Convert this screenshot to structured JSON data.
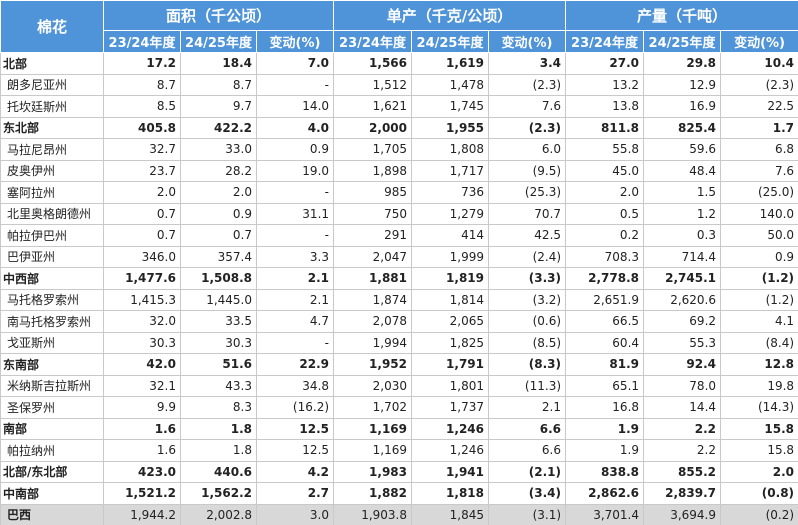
{
  "header": {
    "first": "棉花",
    "groups": [
      "面积（千公顷）",
      "单产（千克/公顷）",
      "产量（千吨）"
    ],
    "sub": [
      "23/24年度",
      "24/25年度",
      "变动(%)",
      "23/24年度",
      "24/25年度",
      "变动(%)",
      "23/24年度",
      "24/25年度",
      "变动(%)"
    ]
  },
  "table": {
    "bold_rows": [
      0,
      3,
      10,
      14,
      17,
      19,
      20
    ],
    "shaded_rows": [
      21
    ],
    "rows": [
      [
        "北部",
        "17.2",
        "18.4",
        "7.0",
        "1,566",
        "1,619",
        "3.4",
        "27.0",
        "29.8",
        "10.4"
      ],
      [
        "朗多尼亚州",
        "8.7",
        "8.7",
        "-",
        "1,512",
        "1,478",
        "(2.3)",
        "13.2",
        "12.9",
        "(2.3)"
      ],
      [
        "托坎廷斯州",
        "8.5",
        "9.7",
        "14.0",
        "1,621",
        "1,745",
        "7.6",
        "13.8",
        "16.9",
        "22.5"
      ],
      [
        "东北部",
        "405.8",
        "422.2",
        "4.0",
        "2,000",
        "1,955",
        "(2.3)",
        "811.8",
        "825.4",
        "1.7"
      ],
      [
        "马拉尼昂州",
        "32.7",
        "33.0",
        "0.9",
        "1,705",
        "1,808",
        "6.0",
        "55.8",
        "59.6",
        "6.8"
      ],
      [
        "皮奥伊州",
        "23.7",
        "28.2",
        "19.0",
        "1,898",
        "1,717",
        "(9.5)",
        "45.0",
        "48.4",
        "7.6"
      ],
      [
        "塞阿拉州",
        "2.0",
        "2.0",
        "-",
        "985",
        "736",
        "(25.3)",
        "2.0",
        "1.5",
        "(25.0)"
      ],
      [
        "北里奥格朗德州",
        "0.7",
        "0.9",
        "31.1",
        "750",
        "1,279",
        "70.7",
        "0.5",
        "1.2",
        "140.0"
      ],
      [
        "帕拉伊巴州",
        "0.7",
        "0.7",
        "-",
        "291",
        "414",
        "42.5",
        "0.2",
        "0.3",
        "50.0"
      ],
      [
        "巴伊亚州",
        "346.0",
        "357.4",
        "3.3",
        "2,047",
        "1,999",
        "(2.4)",
        "708.3",
        "714.4",
        "0.9"
      ],
      [
        "中西部",
        "1,477.6",
        "1,508.8",
        "2.1",
        "1,881",
        "1,819",
        "(3.3)",
        "2,778.8",
        "2,745.1",
        "(1.2)"
      ],
      [
        "马托格罗索州",
        "1,415.3",
        "1,445.0",
        "2.1",
        "1,874",
        "1,814",
        "(3.2)",
        "2,651.9",
        "2,620.6",
        "(1.2)"
      ],
      [
        "南马托格罗索州",
        "32.0",
        "33.5",
        "4.7",
        "2,078",
        "2,065",
        "(0.6)",
        "66.5",
        "69.2",
        "4.1"
      ],
      [
        "戈亚斯州",
        "30.3",
        "30.3",
        "-",
        "1,994",
        "1,825",
        "(8.5)",
        "60.4",
        "55.3",
        "(8.4)"
      ],
      [
        "东南部",
        "42.0",
        "51.6",
        "22.9",
        "1,952",
        "1,791",
        "(8.3)",
        "81.9",
        "92.4",
        "12.8"
      ],
      [
        "米纳斯吉拉斯州",
        "32.1",
        "43.3",
        "34.8",
        "2,030",
        "1,801",
        "(11.3)",
        "65.1",
        "78.0",
        "19.8"
      ],
      [
        "圣保罗州",
        "9.9",
        "8.3",
        "(16.2)",
        "1,702",
        "1,737",
        "2.1",
        "16.8",
        "14.4",
        "(14.3)"
      ],
      [
        "南部",
        "1.6",
        "1.8",
        "12.5",
        "1,169",
        "1,246",
        "6.6",
        "1.9",
        "2.2",
        "15.8"
      ],
      [
        "帕拉纳州",
        "1.6",
        "1.8",
        "12.5",
        "1,169",
        "1,246",
        "6.6",
        "1.9",
        "2.2",
        "15.8"
      ],
      [
        "北部/东北部",
        "423.0",
        "440.6",
        "4.2",
        "1,983",
        "1,941",
        "(2.1)",
        "838.8",
        "855.2",
        "2.0"
      ],
      [
        "中南部",
        "1,521.2",
        "1,562.2",
        "2.7",
        "1,882",
        "1,818",
        "(3.4)",
        "2,862.6",
        "2,839.7",
        "(0.8)"
      ],
      [
        "巴西",
        "1,944.2",
        "2,002.8",
        "3.0",
        "1,903.8",
        "1,845",
        "(3.1)",
        "3,701.4",
        "3,694.9",
        "(0.2)"
      ]
    ]
  }
}
